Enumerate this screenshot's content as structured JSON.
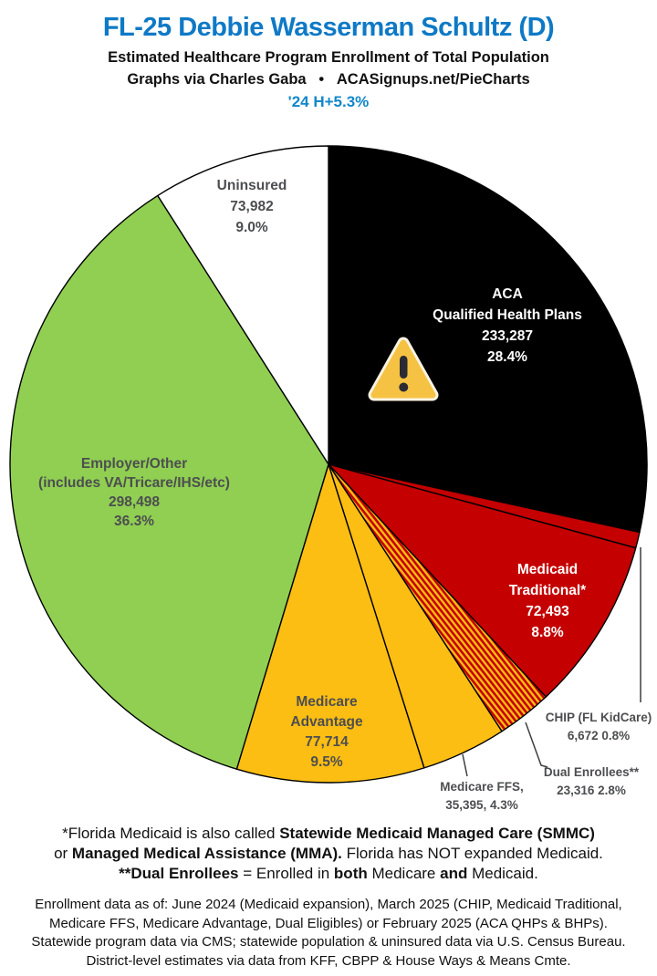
{
  "header": {
    "title": "FL-25 Debbie Wasserman Schultz (D)",
    "subtitle": "Estimated Healthcare Program Enrollment of Total Population",
    "credit": "Graphs via Charles Gaba   •   ACASignups.net/PieCharts",
    "trend": "'24 H+5.3%"
  },
  "colors": {
    "title_blue": "#0E79C6",
    "trend_blue": "#1287CB",
    "slice_black": "#000000",
    "slice_red": "#C40000",
    "slice_gold": "#FCBE13",
    "slice_green": "#90CF52",
    "slice_white": "#FFFFFF",
    "hatch_stripe_gold": "#FCBE13",
    "hatch_stripe_red": "#C40000",
    "label_gray": "#4D4E50",
    "warning_yellow": "#F6C243",
    "warning_dark": "#2B2B33"
  },
  "chart_data": {
    "type": "pie",
    "title": "FL-25 Debbie Wasserman Schultz (D)",
    "subtitle": "Estimated Healthcare Program Enrollment of Total Population",
    "start_angle_deg": 0,
    "direction": "clockwise",
    "slices": [
      {
        "name": "aca-qhp",
        "label": "ACA Qualified Health Plans",
        "value": 233287,
        "pct": 28.4,
        "color": "#000000"
      },
      {
        "name": "chip",
        "label": "CHIP (FL KidCare)",
        "value": 6672,
        "pct": 0.8,
        "color": "#C40000"
      },
      {
        "name": "medicaid-traditional",
        "label": "Medicaid Traditional*",
        "value": 72493,
        "pct": 8.8,
        "color": "#C40000"
      },
      {
        "name": "dual-enrollees",
        "label": "Dual Enrollees**",
        "value": 23316,
        "pct": 2.8,
        "color": "hatch-red-gold"
      },
      {
        "name": "medicare-ffs",
        "label": "Medicare FFS",
        "value": 35395,
        "pct": 4.3,
        "color": "#FCBE13"
      },
      {
        "name": "medicare-advantage",
        "label": "Medicare Advantage",
        "value": 77714,
        "pct": 9.5,
        "color": "#FCBE13"
      },
      {
        "name": "employer-other",
        "label": "Employer/Other (includes VA/Tricare/IHS/etc)",
        "value": 298498,
        "pct": 36.3,
        "color": "#90CF52"
      },
      {
        "name": "uninsured",
        "label": "Uninsured",
        "value": 73982,
        "pct": 9.0,
        "color": "#FFFFFF"
      }
    ],
    "annotations": [
      {
        "type": "warning-icon",
        "on_slice": "ACA Qualified Health Plans"
      }
    ],
    "legend_position": "labels-on-slices"
  },
  "pie_labels": {
    "uninsured": {
      "l1": "Uninsured",
      "l2": "73,982",
      "l3": "9.0%"
    },
    "aca": {
      "l1": "ACA",
      "l2": "Qualified Health Plans",
      "l3": "233,287",
      "l4": "28.4%"
    },
    "medicaid": {
      "l1": "Medicaid",
      "l2": "Traditional*",
      "l3": "72,493",
      "l4": "8.8%"
    },
    "employer": {
      "l1": "Employer/Other",
      "l2": "(includes VA/Tricare/IHS/etc)",
      "l3": "298,498",
      "l4": "36.3%"
    },
    "advantage": {
      "l1": "Medicare",
      "l2": "Advantage",
      "l3": "77,714",
      "l4": "9.5%"
    },
    "ffs": {
      "l1": "Medicare FFS,",
      "l2": "35,395, 4.3%"
    },
    "dual": {
      "l1": "Dual Enrollees**",
      "l2": "23,316 2.8%"
    },
    "chip": {
      "l1": "CHIP (FL KidCare)",
      "l2": "6,672 0.8%"
    }
  },
  "footnotes": {
    "line1": {
      "pre": "*Florida Medicaid is also called ",
      "bold": "Statewide Medicaid Managed Care (SMMC)"
    },
    "line2": {
      "pre": "or ",
      "bold": "Managed Medical Assistance (MMA).",
      "post": " Florida has NOT expanded Medicaid."
    },
    "line3": {
      "bold1": "**Dual Enrollees",
      "mid1": " = Enrolled in ",
      "bold2": "both",
      "mid2": " Medicare ",
      "bold3": "and",
      "post": " Medicaid."
    }
  },
  "footer": {
    "line1": "Enrollment data as of: June 2024 (Medicaid expansion), March 2025 (CHIP, Medicaid Traditional,",
    "line2": "Medicare FFS, Medicare Advantage, Dual Eligibles) or February 2025 (ACA QHPs & BHPs).",
    "line3": "Statewide program data via CMS; statewide population & uninsured data via U.S. Census Bureau.",
    "line4": "District-level estimates via data from KFF, CBPP & House Ways & Means Cmte."
  }
}
